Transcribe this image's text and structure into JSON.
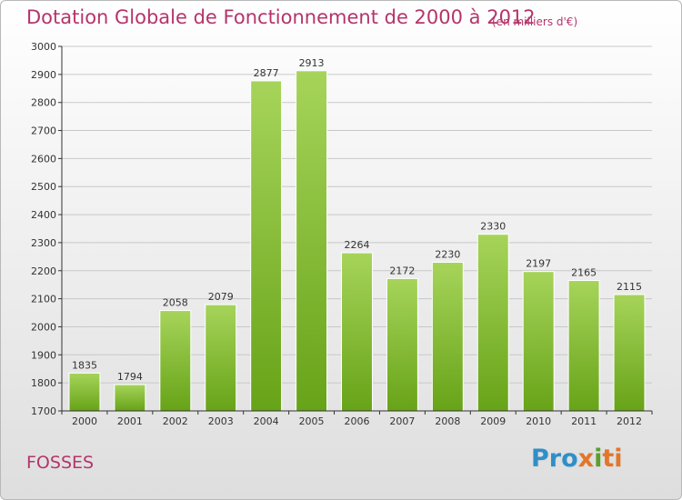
{
  "header": {
    "title": "Dotation Globale de Fonctionnement de 2000 à 2012",
    "subtitle": "(en milliers d'€)"
  },
  "footer": {
    "place": "FOSSES",
    "logo": {
      "text": "Proxiti",
      "parts": [
        {
          "text": "Pro",
          "color": "#2f8fc9"
        },
        {
          "text": "x",
          "color": "#e2762a"
        },
        {
          "text": "i",
          "color": "#5aa02c"
        },
        {
          "text": "ti",
          "color": "#e2762a"
        }
      ]
    }
  },
  "colors": {
    "title": "#b5346b",
    "bar_light": "#a6d45a",
    "bar_dark": "#67a318",
    "axis": "#333333",
    "grid": "#c8c8c8"
  },
  "chart_data": {
    "type": "bar",
    "categories": [
      "2000",
      "2001",
      "2002",
      "2003",
      "2004",
      "2005",
      "2006",
      "2007",
      "2008",
      "2009",
      "2010",
      "2011",
      "2012"
    ],
    "values": [
      1835,
      1794,
      2058,
      2079,
      2877,
      2913,
      2264,
      2172,
      2230,
      2330,
      2197,
      2165,
      2115
    ],
    "ylim": [
      1700,
      3000
    ],
    "yticks": [
      1700,
      1800,
      1900,
      2000,
      2100,
      2200,
      2300,
      2400,
      2500,
      2600,
      2700,
      2800,
      2900,
      3000
    ],
    "grid": true,
    "xlabel": "",
    "ylabel": ""
  }
}
